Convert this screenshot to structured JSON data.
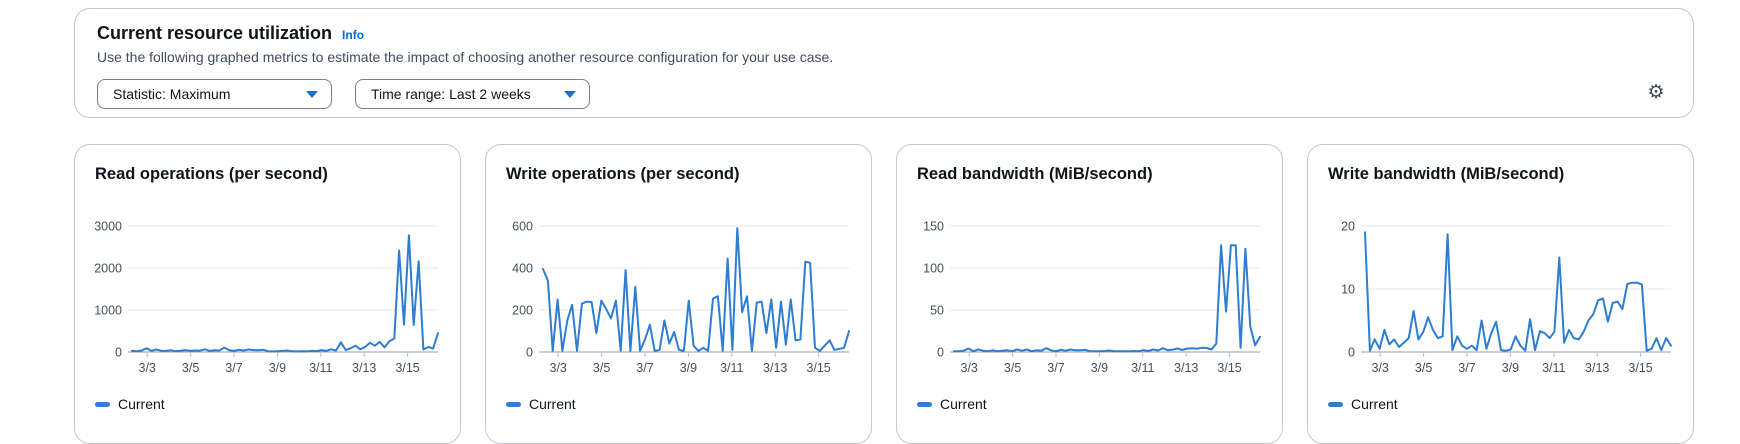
{
  "panel": {
    "title": "Current resource utilization",
    "info_link": "Info",
    "description": "Use the following graphed metrics to estimate the impact of choosing another resource configuration for your use case.",
    "statistic_dropdown": {
      "label": "Statistic: Maximum"
    },
    "time_range_dropdown": {
      "label": "Time range: Last 2 weeks"
    },
    "settings_icon": "gear-icon"
  },
  "legend_label": "Current",
  "colors": {
    "line": "#2E7DD1",
    "grid_line": "#e8eaed",
    "axis_line": "#969ea8",
    "tick_line": "#b7bec7",
    "link_blue": "#006ce0",
    "caret_blue": "#0972d3"
  },
  "x_axis": {
    "tick_labels": [
      "3/3",
      "3/5",
      "3/7",
      "3/9",
      "3/11",
      "3/13",
      "3/15"
    ],
    "tick_days": [
      3,
      5,
      7,
      9,
      11,
      13,
      15
    ],
    "domain_days": [
      2.3,
      16.4
    ]
  },
  "chart_data": [
    {
      "type": "line",
      "title": "Read operations (per second)",
      "series_name": "Current",
      "y_ticks": [
        3000,
        2000,
        1000,
        0
      ],
      "ylim": [
        0,
        3000
      ],
      "values": [
        25,
        20,
        35,
        90,
        25,
        60,
        30,
        25,
        40,
        20,
        30,
        45,
        25,
        35,
        30,
        65,
        25,
        40,
        35,
        105,
        45,
        25,
        50,
        35,
        60,
        45,
        40,
        55,
        20,
        15,
        20,
        25,
        35,
        20,
        15,
        20,
        15,
        25,
        20,
        45,
        25,
        65,
        35,
        230,
        45,
        90,
        150,
        65,
        120,
        220,
        150,
        240,
        110,
        260,
        320,
        2420,
        650,
        2780,
        640,
        2160,
        60,
        120,
        80,
        450
      ]
    },
    {
      "type": "line",
      "title": "Write operations (per second)",
      "series_name": "Current",
      "y_ticks": [
        600,
        400,
        200,
        0
      ],
      "ylim": [
        0,
        600
      ],
      "values": [
        395,
        340,
        5,
        250,
        5,
        150,
        225,
        5,
        230,
        240,
        238,
        90,
        245,
        205,
        160,
        245,
        5,
        390,
        5,
        310,
        5,
        60,
        130,
        5,
        10,
        150,
        40,
        95,
        10,
        5,
        245,
        30,
        5,
        20,
        5,
        255,
        265,
        5,
        445,
        10,
        590,
        190,
        265,
        5,
        235,
        240,
        90,
        250,
        20,
        240,
        35,
        250,
        55,
        60,
        430,
        425,
        20,
        5,
        30,
        55,
        10,
        15,
        20,
        100
      ]
    },
    {
      "type": "line",
      "title": "Read bandwidth (MiB/second)",
      "series_name": "Current",
      "y_ticks": [
        150,
        100,
        50,
        0
      ],
      "ylim": [
        0,
        150
      ],
      "values": [
        1,
        0.8,
        1.5,
        4,
        1,
        3,
        1.5,
        1,
        2,
        1,
        1.5,
        2,
        1,
        3,
        1.5,
        3,
        1,
        2,
        1.5,
        4.5,
        2,
        1,
        2.5,
        1.5,
        3,
        2,
        2,
        2.5,
        1,
        0.8,
        1,
        1.2,
        1.8,
        1,
        0.8,
        1,
        0.8,
        1.2,
        1,
        2.2,
        1.2,
        3,
        1.8,
        4.5,
        2.2,
        2.8,
        4.2,
        2.5,
        4,
        4.5,
        4,
        5,
        4.8,
        3,
        10,
        127,
        48,
        127,
        127,
        5,
        123,
        30,
        8,
        18
      ]
    },
    {
      "type": "line",
      "title": "Write bandwidth (MiB/second)",
      "series_name": "Current",
      "y_ticks": [
        20,
        10,
        0
      ],
      "ylim": [
        0,
        20
      ],
      "values": [
        19,
        0.2,
        2,
        0.5,
        3.5,
        1.2,
        2,
        0.8,
        1.5,
        2.2,
        6.5,
        2,
        3.2,
        5.5,
        3.5,
        2.2,
        2.5,
        18.7,
        0.3,
        2.5,
        1,
        0.5,
        1,
        0.3,
        5,
        0.5,
        3,
        4.8,
        0.3,
        0.2,
        0.4,
        2.5,
        1,
        0.2,
        5.2,
        0.3,
        3.3,
        3,
        2.2,
        3.2,
        15,
        1.5,
        3.5,
        2.2,
        2,
        3.2,
        5,
        6,
        8.2,
        8.5,
        4.8,
        7.8,
        8,
        6.8,
        10.8,
        11,
        11,
        10.7,
        0.2,
        0.5,
        2.2,
        0.3,
        2.2,
        1
      ]
    }
  ]
}
